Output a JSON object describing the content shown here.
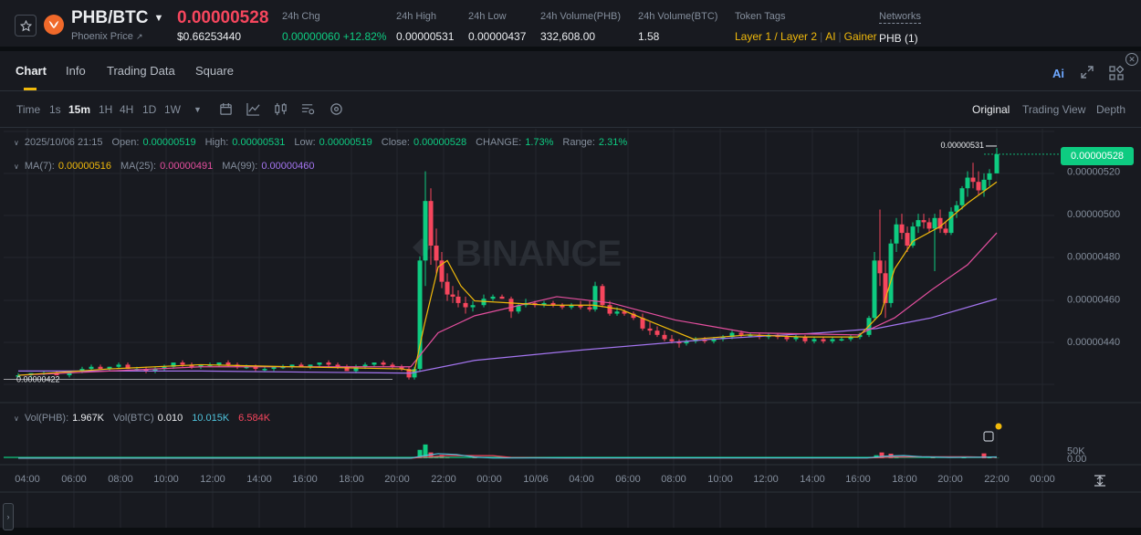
{
  "ticker": {
    "pair": "PHB/BTC",
    "name": "Phoenix Price",
    "price": "0.00000528",
    "usd_price": "$0.66253440",
    "change_label": "24h Chg",
    "change_value": "0.00000060",
    "change_pct": "+12.82%",
    "high_label": "24h High",
    "high_value": "0.00000531",
    "low_label": "24h Low",
    "low_value": "0.00000437",
    "vol_base_label": "24h Volume(PHB)",
    "vol_base_value": "332,608.00",
    "vol_quote_label": "24h Volume(BTC)",
    "vol_quote_value": "1.58",
    "tags_label": "Token Tags",
    "tags": [
      "Layer 1 / Layer 2",
      "AI",
      "Gainer"
    ],
    "networks_label": "Networks",
    "networks_value": "PHB (1)"
  },
  "tabs": [
    "Chart",
    "Info",
    "Trading Data",
    "Square"
  ],
  "toolbar": {
    "intervals": [
      "Time",
      "1s",
      "15m",
      "1H",
      "4H",
      "1D",
      "1W"
    ],
    "active_interval": "15m",
    "views": [
      "Original",
      "Trading View",
      "Depth"
    ]
  },
  "ohlc": {
    "date": "2025/10/06 21:15",
    "open_label": "Open:",
    "open": "0.00000519",
    "high_label": "High:",
    "high": "0.00000531",
    "low_label": "Low:",
    "low": "0.00000519",
    "close_label": "Close:",
    "close": "0.00000528",
    "change_label": "CHANGE:",
    "change": "1.73%",
    "range_label": "Range:",
    "range": "2.31%"
  },
  "ma": {
    "ma7_label": "MA(7):",
    "ma7": "0.00000516",
    "ma25_label": "MA(25):",
    "ma25": "0.00000491",
    "ma99_label": "MA(99):",
    "ma99": "0.00000460"
  },
  "vol": {
    "label1": "Vol(PHB):",
    "v1": "1.967K",
    "label2": "Vol(BTC)",
    "v2": "0.010",
    "v3": "10.015K",
    "v4": "6.584K"
  },
  "markers": {
    "high": "0.00000531",
    "low": "0.00000422"
  },
  "watermark": "BINANCE",
  "colors": {
    "up": "#0ecb81",
    "down": "#f6465d",
    "ma7": "#f0b90b",
    "ma25": "#e54f9f",
    "ma99": "#a475f0",
    "brand": "#f0b90b"
  },
  "chart_data": {
    "type": "candlestick",
    "price_axis": {
      "ticks": [
        "0.00000520",
        "0.00000500",
        "0.00000480",
        "0.00000460",
        "0.00000440"
      ],
      "range": [
        4.12e-06,
        5.4e-06
      ]
    },
    "volume_axis": {
      "ticks": [
        "50K",
        "0.00"
      ],
      "range": [
        0,
        95000
      ]
    },
    "time_axis": [
      "04:00",
      "06:00",
      "08:00",
      "10:00",
      "12:00",
      "14:00",
      "16:00",
      "18:00",
      "20:00",
      "22:00",
      "00:00",
      "10/06",
      "04:00",
      "06:00",
      "08:00",
      "10:00",
      "12:00",
      "14:00",
      "16:00",
      "18:00",
      "20:00",
      "22:00",
      "00:00"
    ],
    "last_price": "0.00000528",
    "candles": [
      [
        0,
        4.24e-06,
        4.25e-06,
        4.23e-06,
        4.24e-06
      ],
      [
        14,
        4.24e-06,
        4.25e-06,
        4.23e-06,
        4.25e-06
      ],
      [
        28,
        4.25e-06,
        4.26e-06,
        4.24e-06,
        4.25e-06
      ],
      [
        42,
        4.25e-06,
        4.26e-06,
        4.24e-06,
        4.24e-06
      ],
      [
        56,
        4.24e-06,
        4.26e-06,
        4.23e-06,
        4.26e-06
      ],
      [
        70,
        4.26e-06,
        4.28e-06,
        4.25e-06,
        4.27e-06
      ],
      [
        80,
        4.27e-06,
        4.29e-06,
        4.26e-06,
        4.28e-06
      ],
      [
        90,
        4.28e-06,
        4.29e-06,
        4.27e-06,
        4.27e-06
      ],
      [
        100,
        4.27e-06,
        4.28e-06,
        4.26e-06,
        4.28e-06
      ],
      [
        110,
        4.28e-06,
        4.3e-06,
        4.27e-06,
        4.29e-06
      ],
      [
        120,
        4.29e-06,
        4.3e-06,
        4.27e-06,
        4.27e-06
      ],
      [
        130,
        4.27e-06,
        4.28e-06,
        4.26e-06,
        4.27e-06
      ],
      [
        140,
        4.27e-06,
        4.28e-06,
        4.25e-06,
        4.26e-06
      ],
      [
        150,
        4.26e-06,
        4.28e-06,
        4.25e-06,
        4.27e-06
      ],
      [
        160,
        4.27e-06,
        4.29e-06,
        4.26e-06,
        4.28e-06
      ],
      [
        170,
        4.28e-06,
        4.3e-06,
        4.27e-06,
        4.3e-06
      ],
      [
        180,
        4.3e-06,
        4.31e-06,
        4.28e-06,
        4.29e-06
      ],
      [
        190,
        4.29e-06,
        4.3e-06,
        4.27e-06,
        4.28e-06
      ],
      [
        200,
        4.28e-06,
        4.29e-06,
        4.27e-06,
        4.29e-06
      ],
      [
        210,
        4.29e-06,
        4.3e-06,
        4.28e-06,
        4.29e-06
      ],
      [
        220,
        4.29e-06,
        4.3e-06,
        4.28e-06,
        4.3e-06
      ],
      [
        230,
        4.3e-06,
        4.31e-06,
        4.28e-06,
        4.29e-06
      ],
      [
        240,
        4.29e-06,
        4.3e-06,
        4.27e-06,
        4.28e-06
      ],
      [
        250,
        4.28e-06,
        4.29e-06,
        4.27e-06,
        4.28e-06
      ],
      [
        260,
        4.28e-06,
        4.29e-06,
        4.26e-06,
        4.27e-06
      ],
      [
        270,
        4.27e-06,
        4.28e-06,
        4.26e-06,
        4.27e-06
      ],
      [
        280,
        4.27e-06,
        4.28e-06,
        4.26e-06,
        4.28e-06
      ],
      [
        290,
        4.28e-06,
        4.29e-06,
        4.27e-06,
        4.28e-06
      ],
      [
        300,
        4.28e-06,
        4.29e-06,
        4.27e-06,
        4.29e-06
      ],
      [
        310,
        4.29e-06,
        4.3e-06,
        4.28e-06,
        4.28e-06
      ],
      [
        320,
        4.28e-06,
        4.29e-06,
        4.27e-06,
        4.29e-06
      ],
      [
        330,
        4.29e-06,
        4.3e-06,
        4.28e-06,
        4.3e-06
      ],
      [
        340,
        4.3e-06,
        4.31e-06,
        4.28e-06,
        4.29e-06
      ],
      [
        350,
        4.29e-06,
        4.3e-06,
        4.27e-06,
        4.28e-06
      ],
      [
        360,
        4.28e-06,
        4.29e-06,
        4.26e-06,
        4.26e-06
      ],
      [
        370,
        4.26e-06,
        4.29e-06,
        4.25e-06,
        4.28e-06
      ],
      [
        380,
        4.28e-06,
        4.3e-06,
        4.27e-06,
        4.29e-06
      ],
      [
        390,
        4.29e-06,
        4.3e-06,
        4.28e-06,
        4.3e-06
      ],
      [
        400,
        4.3e-06,
        4.31e-06,
        4.28e-06,
        4.29e-06
      ],
      [
        410,
        4.29e-06,
        4.3e-06,
        4.27e-06,
        4.28e-06
      ],
      [
        420,
        4.28e-06,
        4.29e-06,
        4.26e-06,
        4.27e-06
      ],
      [
        428,
        4.27e-06,
        4.28e-06,
        4.22e-06,
        4.23e-06
      ],
      [
        434,
        4.23e-06,
        4.28e-06,
        4.22e-06,
        4.27e-06
      ],
      [
        440,
        4.27e-06,
        4.8e-06,
        4.26e-06,
        4.78e-06
      ],
      [
        446,
        4.78e-06,
        5.2e-06,
        4.66e-06,
        5.06e-06
      ],
      [
        452,
        5.06e-06,
        5.12e-06,
        4.76e-06,
        4.85e-06
      ],
      [
        458,
        4.85e-06,
        4.93e-06,
        4.72e-06,
        4.78e-06
      ],
      [
        464,
        4.78e-06,
        4.82e-06,
        4.65e-06,
        4.68e-06
      ],
      [
        470,
        4.68e-06,
        4.72e-06,
        4.59e-06,
        4.62e-06
      ],
      [
        476,
        4.62e-06,
        4.66e-06,
        4.58e-06,
        4.61e-06
      ],
      [
        482,
        4.61e-06,
        4.64e-06,
        4.56e-06,
        4.58e-06
      ],
      [
        490,
        4.58e-06,
        4.61e-06,
        4.53e-06,
        4.56e-06
      ],
      [
        498,
        4.56e-06,
        4.59e-06,
        4.54e-06,
        4.57e-06
      ],
      [
        510,
        4.57e-06,
        4.62e-06,
        4.56e-06,
        4.6e-06
      ],
      [
        520,
        4.6e-06,
        4.62e-06,
        4.59e-06,
        4.61e-06
      ],
      [
        530,
        4.61e-06,
        4.62e-06,
        4.6e-06,
        4.6e-06
      ],
      [
        540,
        4.6e-06,
        4.61e-06,
        4.51e-06,
        4.54e-06
      ],
      [
        548,
        4.54e-06,
        4.58e-06,
        4.53e-06,
        4.57e-06
      ],
      [
        556,
        4.57e-06,
        4.6e-06,
        4.56e-06,
        4.58e-06
      ],
      [
        566,
        4.58e-06,
        4.59e-06,
        4.56e-06,
        4.57e-06
      ],
      [
        576,
        4.57e-06,
        4.59e-06,
        4.56e-06,
        4.58e-06
      ],
      [
        586,
        4.58e-06,
        4.59e-06,
        4.56e-06,
        4.57e-06
      ],
      [
        596,
        4.57e-06,
        4.58e-06,
        4.55e-06,
        4.56e-06
      ],
      [
        606,
        4.56e-06,
        4.58e-06,
        4.55e-06,
        4.57e-06
      ],
      [
        616,
        4.57e-06,
        4.59e-06,
        4.55e-06,
        4.56e-06
      ],
      [
        626,
        4.56e-06,
        4.59e-06,
        4.54e-06,
        4.55e-06
      ],
      [
        632,
        4.55e-06,
        4.68e-06,
        4.54e-06,
        4.66e-06
      ],
      [
        640,
        4.66e-06,
        4.67e-06,
        4.56e-06,
        4.57e-06
      ],
      [
        648,
        4.57e-06,
        4.59e-06,
        4.52e-06,
        4.53e-06
      ],
      [
        656,
        4.53e-06,
        4.56e-06,
        4.52e-06,
        4.54e-06
      ],
      [
        664,
        4.54e-06,
        4.55e-06,
        4.52e-06,
        4.53e-06
      ],
      [
        674,
        4.53e-06,
        4.54e-06,
        4.5e-06,
        4.51e-06
      ],
      [
        684,
        4.51e-06,
        4.53e-06,
        4.45e-06,
        4.46e-06
      ],
      [
        692,
        4.46e-06,
        4.49e-06,
        4.43e-06,
        4.45e-06
      ],
      [
        700,
        4.45e-06,
        4.47e-06,
        4.42e-06,
        4.43e-06
      ],
      [
        708,
        4.43e-06,
        4.45e-06,
        4.4e-06,
        4.41e-06
      ],
      [
        716,
        4.41e-06,
        4.43e-06,
        4.39e-06,
        4.4e-06
      ],
      [
        724,
        4.4e-06,
        4.41e-06,
        4.37e-06,
        4.39e-06
      ],
      [
        732,
        4.39e-06,
        4.41e-06,
        4.38e-06,
        4.4e-06
      ],
      [
        742,
        4.4e-06,
        4.42e-06,
        4.39e-06,
        4.41e-06
      ],
      [
        752,
        4.41e-06,
        4.42e-06,
        4.39e-06,
        4.4e-06
      ],
      [
        762,
        4.4e-06,
        4.42e-06,
        4.39e-06,
        4.41e-06
      ],
      [
        772,
        4.41e-06,
        4.43e-06,
        4.4e-06,
        4.42e-06
      ],
      [
        782,
        4.42e-06,
        4.45e-06,
        4.41e-06,
        4.44e-06
      ],
      [
        792,
        4.44e-06,
        4.45e-06,
        4.42e-06,
        4.43e-06
      ],
      [
        802,
        4.43e-06,
        4.44e-06,
        4.42e-06,
        4.43e-06
      ],
      [
        812,
        4.43e-06,
        4.44e-06,
        4.41e-06,
        4.42e-06
      ],
      [
        822,
        4.42e-06,
        4.44e-06,
        4.41e-06,
        4.43e-06
      ],
      [
        832,
        4.43e-06,
        4.44e-06,
        4.41e-06,
        4.42e-06
      ],
      [
        842,
        4.42e-06,
        4.43e-06,
        4.4e-06,
        4.41e-06
      ],
      [
        852,
        4.41e-06,
        4.43e-06,
        4.4e-06,
        4.42e-06
      ],
      [
        862,
        4.42e-06,
        4.43e-06,
        4.39e-06,
        4.4e-06
      ],
      [
        872,
        4.4e-06,
        4.42e-06,
        4.39e-06,
        4.41e-06
      ],
      [
        882,
        4.41e-06,
        4.42e-06,
        4.39e-06,
        4.4e-06
      ],
      [
        892,
        4.4e-06,
        4.42e-06,
        4.39e-06,
        4.41e-06
      ],
      [
        902,
        4.41e-06,
        4.42e-06,
        4.4e-06,
        4.41e-06
      ],
      [
        912,
        4.41e-06,
        4.43e-06,
        4.4e-06,
        4.42e-06
      ],
      [
        922,
        4.42e-06,
        4.44e-06,
        4.41e-06,
        4.43e-06
      ],
      [
        932,
        4.43e-06,
        4.52e-06,
        4.42e-06,
        4.51e-06
      ],
      [
        938,
        4.51e-06,
        4.82e-06,
        4.5e-06,
        4.78e-06
      ],
      [
        944,
        4.78e-06,
        5.02e-06,
        4.66e-06,
        4.72e-06
      ],
      [
        950,
        4.72e-06,
        4.78e-06,
        4.51e-06,
        4.58e-06
      ],
      [
        956,
        4.58e-06,
        4.88e-06,
        4.56e-06,
        4.86e-06
      ],
      [
        962,
        4.86e-06,
        4.98e-06,
        4.82e-06,
        4.95e-06
      ],
      [
        968,
        4.95e-06,
        5e-06,
        4.88e-06,
        4.91e-06
      ],
      [
        974,
        4.91e-06,
        4.94e-06,
        4.82e-06,
        4.85e-06
      ],
      [
        980,
        4.85e-06,
        4.96e-06,
        4.84e-06,
        4.94e-06
      ],
      [
        986,
        4.94e-06,
        5e-06,
        4.91e-06,
        4.97e-06
      ],
      [
        992,
        4.97e-06,
        5e-06,
        4.93e-06,
        4.96e-06
      ],
      [
        998,
        4.96e-06,
        4.98e-06,
        4.91e-06,
        4.93e-06
      ],
      [
        1004,
        4.93e-06,
        5e-06,
        4.73e-06,
        4.98e-06
      ],
      [
        1010,
        4.98e-06,
        5.02e-06,
        4.91e-06,
        4.93e-06
      ],
      [
        1016,
        4.93e-06,
        4.96e-06,
        4.9e-06,
        4.91e-06
      ],
      [
        1022,
        4.91e-06,
        5.03e-06,
        4.9e-06,
        5.01e-06
      ],
      [
        1028,
        5.01e-06,
        5.06e-06,
        4.98e-06,
        5.04e-06
      ],
      [
        1034,
        5.04e-06,
        5.13e-06,
        5.02e-06,
        5.12e-06
      ],
      [
        1040,
        5.12e-06,
        5.2e-06,
        5.08e-06,
        5.17e-06
      ],
      [
        1046,
        5.17e-06,
        5.24e-06,
        5.12e-06,
        5.15e-06
      ],
      [
        1052,
        5.15e-06,
        5.2e-06,
        5.09e-06,
        5.11e-06
      ],
      [
        1058,
        5.11e-06,
        5.19e-06,
        5.08e-06,
        5.16e-06
      ],
      [
        1064,
        5.16e-06,
        5.21e-06,
        5.13e-06,
        5.19e-06
      ],
      [
        1072,
        5.19e-06,
        5.31e-06,
        5.19e-06,
        5.28e-06
      ]
    ],
    "ma7": [
      [
        0,
        4.24e-06
      ],
      [
        100,
        4.27e-06
      ],
      [
        200,
        4.29e-06
      ],
      [
        300,
        4.28e-06
      ],
      [
        420,
        4.27e-06
      ],
      [
        434,
        4.26e-06
      ],
      [
        445,
        4.48e-06
      ],
      [
        460,
        4.75e-06
      ],
      [
        470,
        4.78e-06
      ],
      [
        485,
        4.66e-06
      ],
      [
        500,
        4.59e-06
      ],
      [
        540,
        4.58e-06
      ],
      [
        580,
        4.57e-06
      ],
      [
        630,
        4.57e-06
      ],
      [
        660,
        4.55e-06
      ],
      [
        700,
        4.48e-06
      ],
      [
        740,
        4.41e-06
      ],
      [
        800,
        4.43e-06
      ],
      [
        860,
        4.42e-06
      ],
      [
        920,
        4.42e-06
      ],
      [
        945,
        4.53e-06
      ],
      [
        960,
        4.74e-06
      ],
      [
        980,
        4.87e-06
      ],
      [
        1010,
        4.94e-06
      ],
      [
        1040,
        5.05e-06
      ],
      [
        1072,
        5.15e-06
      ]
    ],
    "ma25": [
      [
        0,
        4.24e-06
      ],
      [
        200,
        4.28e-06
      ],
      [
        430,
        4.28e-06
      ],
      [
        460,
        4.44e-06
      ],
      [
        500,
        4.52e-06
      ],
      [
        590,
        4.61e-06
      ],
      [
        650,
        4.58e-06
      ],
      [
        720,
        4.5e-06
      ],
      [
        800,
        4.44e-06
      ],
      [
        920,
        4.43e-06
      ],
      [
        960,
        4.51e-06
      ],
      [
        1000,
        4.64e-06
      ],
      [
        1040,
        4.76e-06
      ],
      [
        1072,
        4.91e-06
      ]
    ],
    "ma99": [
      [
        0,
        4.26e-06
      ],
      [
        200,
        4.26e-06
      ],
      [
        430,
        4.25e-06
      ],
      [
        500,
        4.31e-06
      ],
      [
        620,
        4.36e-06
      ],
      [
        760,
        4.41e-06
      ],
      [
        880,
        4.44e-06
      ],
      [
        940,
        4.46e-06
      ],
      [
        1000,
        4.51e-06
      ],
      [
        1072,
        4.6e-06
      ]
    ],
    "volume": [
      [
        156,
        4000,
        1
      ],
      [
        180,
        2500,
        0
      ],
      [
        250,
        1500,
        1
      ],
      [
        434,
        3000,
        1
      ],
      [
        440,
        55000,
        1
      ],
      [
        446,
        90000,
        1
      ],
      [
        452,
        38000,
        0
      ],
      [
        458,
        12000,
        0
      ],
      [
        464,
        22000,
        0
      ],
      [
        470,
        8000,
        0
      ],
      [
        500,
        4000,
        0
      ],
      [
        620,
        9000,
        1
      ],
      [
        632,
        7000,
        1
      ],
      [
        706,
        5000,
        0
      ],
      [
        940,
        20000,
        1
      ],
      [
        946,
        38000,
        0
      ],
      [
        956,
        30000,
        0
      ],
      [
        962,
        12000,
        1
      ],
      [
        1002,
        8000,
        0
      ],
      [
        1036,
        10000,
        1
      ],
      [
        1058,
        32000,
        0
      ],
      [
        1064,
        7000,
        1
      ],
      [
        1072,
        2000,
        1
      ]
    ],
    "vol_ma1": [
      [
        0,
        1000
      ],
      [
        430,
        1000
      ],
      [
        445,
        18000
      ],
      [
        460,
        30000
      ],
      [
        480,
        25000
      ],
      [
        500,
        8000
      ],
      [
        520,
        2000
      ],
      [
        620,
        2500
      ],
      [
        700,
        2500
      ],
      [
        930,
        2500
      ],
      [
        950,
        14000
      ],
      [
        970,
        18000
      ],
      [
        990,
        10000
      ],
      [
        1020,
        6000
      ],
      [
        1050,
        7000
      ],
      [
        1072,
        9000
      ]
    ],
    "vol_ma2": [
      [
        0,
        600
      ],
      [
        430,
        600
      ],
      [
        450,
        10000
      ],
      [
        470,
        18000
      ],
      [
        520,
        17000
      ],
      [
        540,
        5000
      ],
      [
        600,
        1500
      ],
      [
        930,
        2000
      ],
      [
        960,
        9000
      ],
      [
        1000,
        10000
      ],
      [
        1040,
        10000
      ],
      [
        1072,
        6000
      ]
    ]
  }
}
